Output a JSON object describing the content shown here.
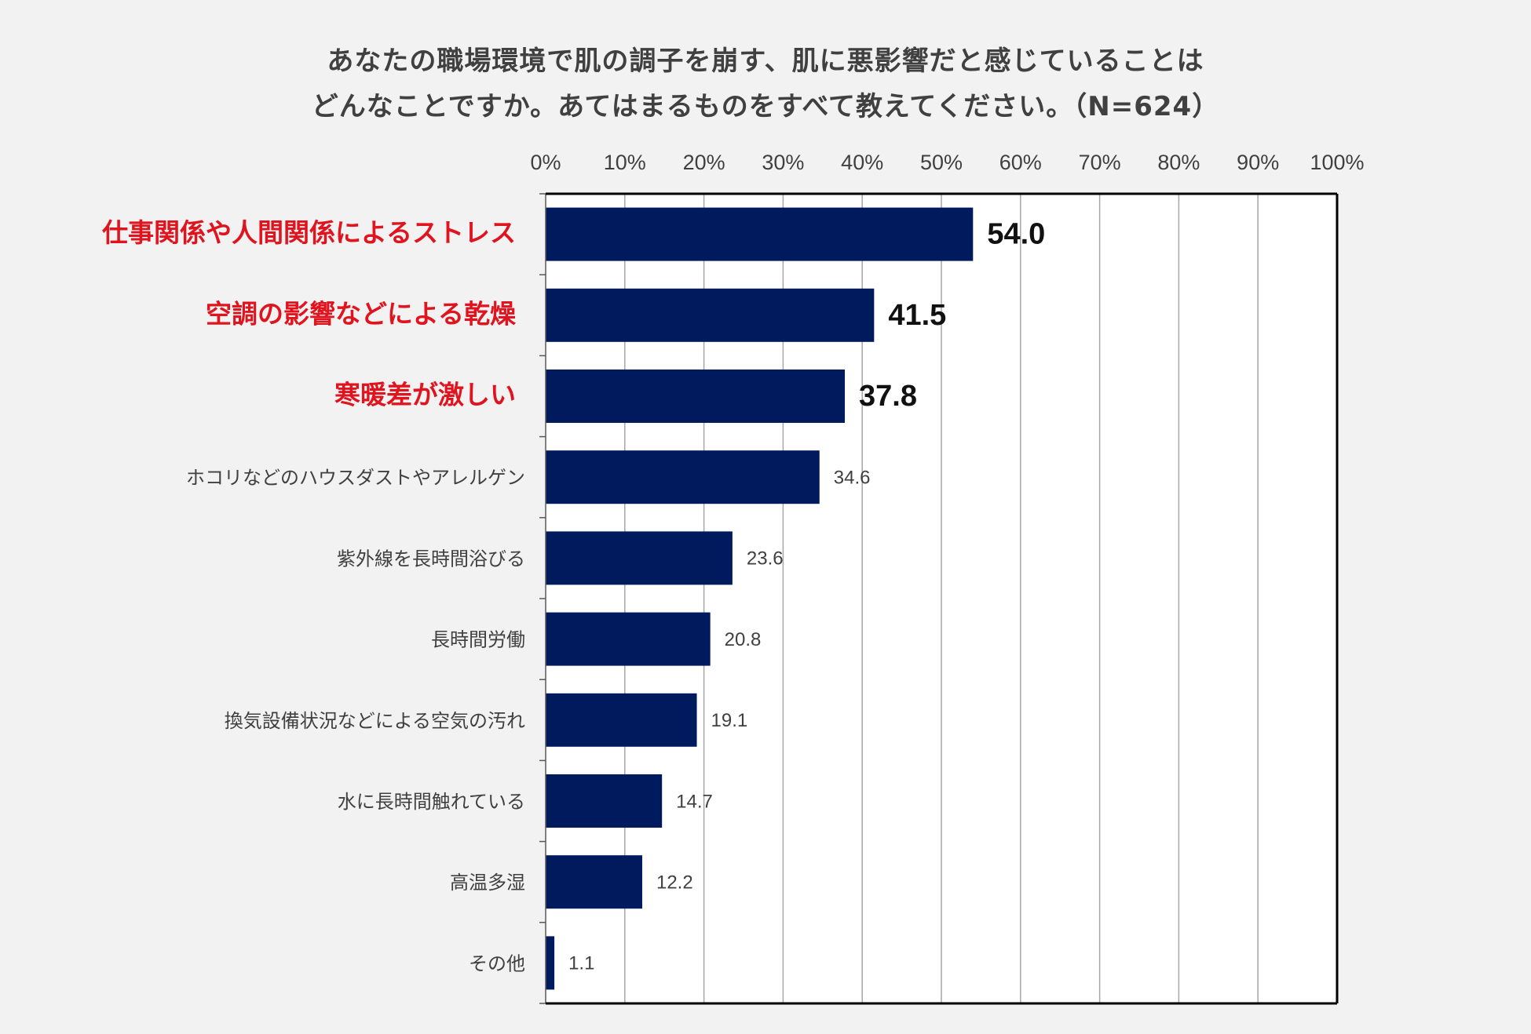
{
  "title_lines": [
    "あなたの職場環境で肌の調子を崩す、肌に悪影響だと感じていることは",
    "どんなことですか。あてはまるものをすべて教えてください。（N=624）"
  ],
  "chart_data": {
    "type": "bar",
    "orientation": "horizontal",
    "title": "あなたの職場環境で肌の調子を崩す、肌に悪影響だと感じていることは どんなことですか。あてはまるものをすべて教えてください。（N=624）",
    "xlim": [
      0,
      100
    ],
    "x_ticks": [
      "0%",
      "10%",
      "20%",
      "30%",
      "40%",
      "50%",
      "60%",
      "70%",
      "80%",
      "90%",
      "100%"
    ],
    "grid": true,
    "categories": [
      "仕事関係や人間関係によるストレス",
      "空調の影響などによる乾燥",
      "寒暖差が激しい",
      "ホコリなどのハウスダストやアレルゲン",
      "紫外線を長時間浴びる",
      "長時間労働",
      "換気設備状況などによる空気の汚れ",
      "水に長時間触れている",
      "高温多湿",
      "その他"
    ],
    "values": [
      54.0,
      41.5,
      37.8,
      34.6,
      23.6,
      20.8,
      19.1,
      14.7,
      12.2,
      1.1
    ],
    "value_labels": [
      "54.0",
      "41.5",
      "37.8",
      "34.6",
      "23.6",
      "20.8",
      "19.1",
      "14.7",
      "12.2",
      "1.1"
    ],
    "highlighted_count": 3
  },
  "colors": {
    "bar": "#001a5e",
    "highlight_label": "#e0141e",
    "normal_label": "#404040",
    "grid": "#a6a6a6",
    "plot_bg": "#ffffff",
    "page_bg": "#f2f2f2"
  }
}
